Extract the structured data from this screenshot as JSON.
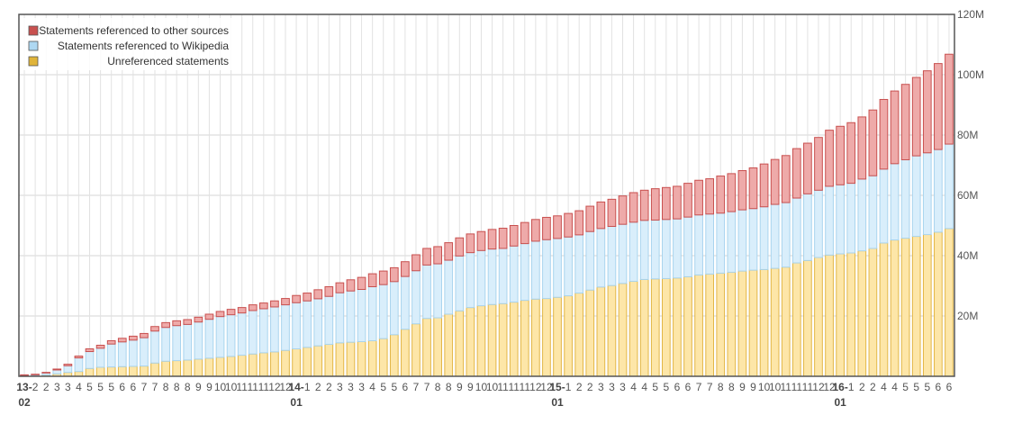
{
  "chart_data": {
    "type": "bar",
    "stacked": true,
    "title": "",
    "xlabel": "",
    "ylabel": "",
    "ylim": [
      0,
      120000000
    ],
    "y_ticks": [
      {
        "value": 20000000,
        "label": "20M"
      },
      {
        "value": 40000000,
        "label": "40M"
      },
      {
        "value": 60000000,
        "label": "60M"
      },
      {
        "value": 80000000,
        "label": "80M"
      },
      {
        "value": 100000000,
        "label": "100M"
      },
      {
        "value": 120000000,
        "label": "120M"
      }
    ],
    "grid": true,
    "legend_position": "top-left",
    "legend": [
      {
        "label": "Statements referenced to other sources",
        "color": "#c8504f"
      },
      {
        "label": "Statements referenced to Wikipedia",
        "color": "#aed8f2"
      },
      {
        "label": "Unreferenced statements",
        "color": "#e0b43a"
      }
    ],
    "x_tick_labels": [
      "13-",
      "2",
      "2",
      "3",
      "3",
      "4",
      "5",
      "5",
      "5",
      "6",
      "6",
      "7",
      "7",
      "8",
      "8",
      "8",
      "9",
      "9",
      "10",
      "10",
      "11",
      "11",
      "11",
      "12",
      "12",
      "14-",
      "1",
      "2",
      "2",
      "3",
      "3",
      "3",
      "4",
      "5",
      "5",
      "6",
      "7",
      "7",
      "8",
      "8",
      "9",
      "9",
      "10",
      "10",
      "11",
      "11",
      "11",
      "12",
      "12",
      "15-",
      "1",
      "2",
      "2",
      "3",
      "3",
      "3",
      "4",
      "4",
      "5",
      "5",
      "6",
      "6",
      "7",
      "7",
      "8",
      "8",
      "9",
      "9",
      "10",
      "10",
      "11",
      "11",
      "11",
      "12",
      "12",
      "16-",
      "1",
      "2",
      "2",
      "4",
      "4",
      "5",
      "5",
      "5",
      "6",
      "6"
    ],
    "x_year_ticks": [
      {
        "index": 0,
        "year": "13-",
        "month": "02"
      },
      {
        "index": 25,
        "year": "14-",
        "month": "01"
      },
      {
        "index": 49,
        "year": "15-",
        "month": "01"
      },
      {
        "index": 75,
        "year": "16-",
        "month": "01"
      }
    ],
    "series": [
      {
        "name": "Unreferenced statements",
        "color": "#e0b43a",
        "values": [
          0.1,
          0.2,
          0.4,
          0.8,
          1.3,
          1.6,
          2.6,
          3.0,
          3.1,
          3.2,
          3.3,
          3.4,
          4.4,
          5.0,
          5.2,
          5.4,
          5.7,
          6.0,
          6.3,
          6.6,
          7.0,
          7.4,
          7.8,
          8.1,
          8.6,
          9.1,
          9.6,
          10.1,
          10.6,
          11.1,
          11.3,
          11.5,
          11.8,
          12.5,
          13.8,
          15.6,
          17.4,
          19.2,
          19.4,
          20.6,
          21.7,
          22.8,
          23.4,
          23.8,
          24.1,
          24.6,
          25.2,
          25.6,
          25.8,
          26.2,
          26.7,
          27.6,
          28.6,
          29.6,
          30.1,
          30.8,
          31.5,
          32.1,
          32.3,
          32.4,
          32.6,
          33.0,
          33.6,
          33.9,
          34.2,
          34.5,
          34.9,
          35.2,
          35.4,
          35.8,
          36.2,
          37.6,
          38.4,
          39.4,
          40.2,
          40.6,
          40.9,
          41.6,
          42.4,
          44.2,
          45.2,
          45.8,
          46.4,
          47.0,
          47.8,
          49.0
        ]
      },
      {
        "name": "Statements referenced to Wikipedia",
        "color": "#aed8f2",
        "values": [
          0.2,
          0.3,
          0.7,
          1.3,
          2.2,
          4.5,
          5.6,
          6.3,
          7.6,
          8.2,
          8.7,
          9.4,
          10.6,
          11.2,
          11.6,
          11.8,
          12.3,
          12.9,
          13.5,
          13.8,
          14.0,
          14.4,
          14.6,
          14.9,
          15.1,
          15.3,
          15.4,
          15.6,
          15.9,
          16.6,
          17.0,
          17.3,
          17.9,
          17.9,
          17.6,
          17.5,
          17.6,
          17.7,
          17.9,
          17.9,
          18.2,
          18.2,
          18.3,
          18.4,
          18.3,
          18.6,
          18.8,
          19.2,
          19.5,
          19.5,
          19.5,
          19.3,
          19.4,
          19.4,
          19.6,
          19.6,
          19.6,
          19.6,
          19.5,
          19.6,
          19.6,
          19.8,
          19.9,
          19.9,
          19.9,
          20.1,
          20.3,
          20.4,
          20.8,
          21.2,
          21.4,
          21.5,
          22.1,
          22.3,
          22.8,
          22.9,
          23.1,
          23.8,
          24.1,
          24.5,
          25.3,
          26.0,
          26.7,
          27.1,
          27.4,
          28.0
        ]
      },
      {
        "name": "Statements referenced to other sources",
        "color": "#c8504f",
        "values": [
          0.1,
          0.1,
          0.2,
          0.3,
          0.5,
          0.6,
          0.9,
          1.0,
          1.1,
          1.2,
          1.3,
          1.4,
          1.5,
          1.6,
          1.6,
          1.6,
          1.6,
          1.7,
          1.7,
          1.8,
          1.8,
          1.9,
          1.9,
          2.0,
          2.1,
          2.4,
          2.6,
          3.0,
          3.2,
          3.3,
          3.7,
          4.0,
          4.3,
          4.5,
          4.6,
          4.9,
          5.3,
          5.5,
          5.7,
          5.8,
          6.0,
          6.2,
          6.3,
          6.5,
          6.7,
          6.8,
          7.0,
          7.2,
          7.4,
          7.5,
          7.8,
          8.0,
          8.4,
          8.8,
          9.0,
          9.4,
          9.8,
          10.0,
          10.4,
          10.6,
          10.8,
          11.2,
          11.5,
          11.7,
          12.3,
          12.6,
          13.0,
          13.5,
          14.2,
          14.9,
          15.6,
          16.4,
          16.8,
          17.5,
          18.6,
          19.4,
          20.1,
          20.6,
          21.8,
          23.1,
          24.1,
          25.0,
          26.0,
          27.2,
          28.5,
          29.8
        ]
      }
    ],
    "value_unit": "M"
  }
}
